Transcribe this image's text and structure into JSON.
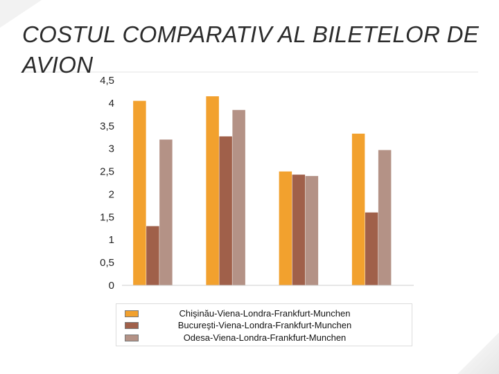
{
  "title": "COSTUL COMPARATIV AL BILETELOR DE AVION",
  "chart_data": {
    "type": "bar",
    "categories": [
      "",
      "",
      "",
      ""
    ],
    "series": [
      {
        "name": "Chişinău-Viena-Londra-Frankfurt-Munchen",
        "color": "#f2a12e",
        "values": [
          4.05,
          4.15,
          2.5,
          3.33
        ]
      },
      {
        "name": "Bucureşti-Viena-Londra-Frankfurt-Munchen",
        "color": "#a0604a",
        "values": [
          1.3,
          3.27,
          2.43,
          1.6
        ]
      },
      {
        "name": "Odesa-Viena-Londra-Frankfurt-Munchen",
        "color": "#b49286",
        "values": [
          3.2,
          3.85,
          2.4,
          2.97
        ]
      }
    ],
    "ylim": [
      0,
      4.5
    ],
    "yticks": [
      "0",
      "0,5",
      "1",
      "1,5",
      "2",
      "2,5",
      "3",
      "3,5",
      "4",
      "4,5"
    ],
    "grid": false,
    "legend_position": "bottom"
  }
}
